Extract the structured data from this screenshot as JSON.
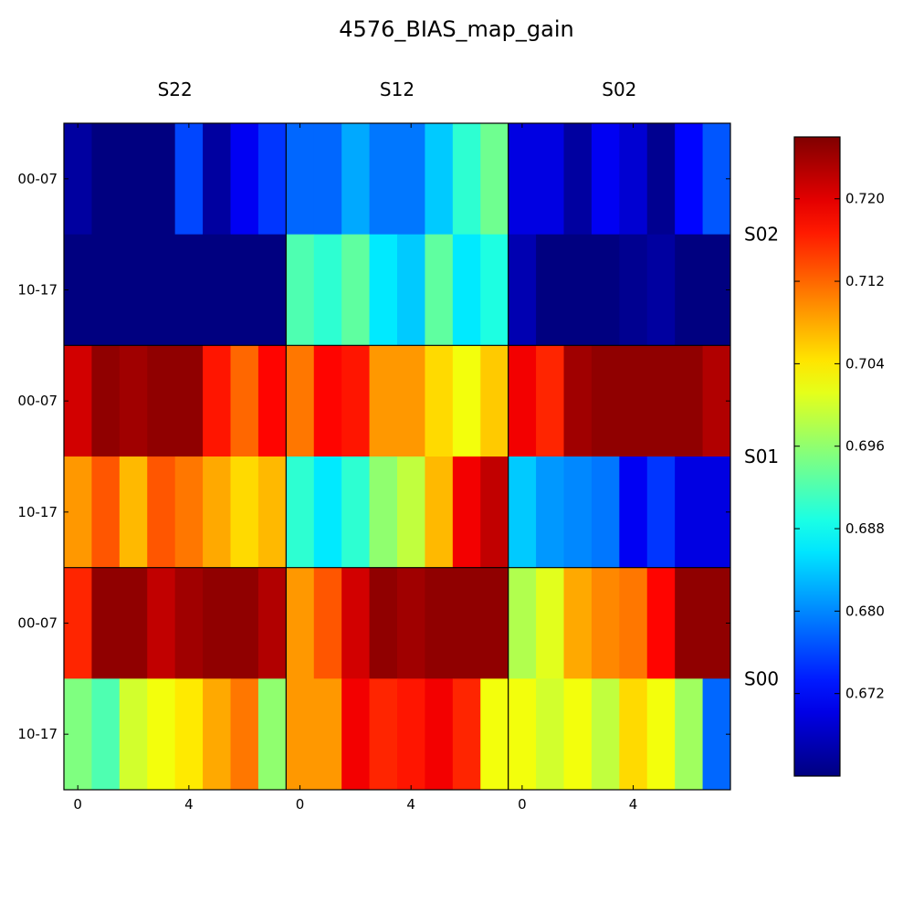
{
  "chart_data": {
    "type": "heatmap",
    "title": "4576_BIAS_map_gain",
    "column_groups": [
      "S22",
      "S12",
      "S02"
    ],
    "row_groups": [
      "S02",
      "S01",
      "S00"
    ],
    "row_tick_labels": [
      "00-07",
      "10-17"
    ],
    "x_tick_labels": [
      "0",
      "4"
    ],
    "x_tick_positions": [
      0,
      4
    ],
    "columns_per_group": 8,
    "rows_per_group": 2,
    "colormap": "jet",
    "color_range": [
      0.664,
      0.726
    ],
    "colorbar_ticks": [
      {
        "value": 0.672,
        "label": "0.672"
      },
      {
        "value": 0.68,
        "label": "0.680"
      },
      {
        "value": 0.688,
        "label": "0.688"
      },
      {
        "value": 0.696,
        "label": "0.696"
      },
      {
        "value": 0.704,
        "label": "0.704"
      },
      {
        "value": 0.712,
        "label": "0.712"
      },
      {
        "value": 0.72,
        "label": "0.720"
      }
    ],
    "values": [
      [
        0.666,
        0.664,
        0.664,
        0.664,
        0.676,
        0.666,
        0.671,
        0.675,
        0.678,
        0.678,
        0.682,
        0.679,
        0.679,
        0.684,
        0.69,
        0.694,
        0.67,
        0.67,
        0.666,
        0.671,
        0.669,
        0.665,
        0.672,
        0.677
      ],
      [
        0.664,
        0.664,
        0.664,
        0.664,
        0.664,
        0.664,
        0.664,
        0.664,
        0.692,
        0.69,
        0.693,
        0.686,
        0.684,
        0.693,
        0.686,
        0.689,
        0.667,
        0.664,
        0.664,
        0.664,
        0.665,
        0.666,
        0.664,
        0.664
      ],
      [
        0.721,
        0.725,
        0.724,
        0.725,
        0.725,
        0.717,
        0.712,
        0.718,
        0.711,
        0.718,
        0.717,
        0.709,
        0.709,
        0.705,
        0.702,
        0.706,
        0.719,
        0.716,
        0.724,
        0.725,
        0.725,
        0.725,
        0.725,
        0.723
      ],
      [
        0.709,
        0.713,
        0.707,
        0.713,
        0.711,
        0.708,
        0.705,
        0.707,
        0.69,
        0.686,
        0.69,
        0.696,
        0.699,
        0.707,
        0.719,
        0.722,
        0.684,
        0.681,
        0.68,
        0.679,
        0.671,
        0.675,
        0.67,
        0.67
      ],
      [
        0.716,
        0.725,
        0.725,
        0.722,
        0.724,
        0.725,
        0.725,
        0.723,
        0.709,
        0.713,
        0.721,
        0.725,
        0.724,
        0.725,
        0.725,
        0.725,
        0.698,
        0.701,
        0.708,
        0.71,
        0.711,
        0.718,
        0.725,
        0.725
      ],
      [
        0.695,
        0.692,
        0.7,
        0.702,
        0.704,
        0.708,
        0.711,
        0.696,
        0.709,
        0.709,
        0.719,
        0.716,
        0.717,
        0.719,
        0.716,
        0.702,
        0.702,
        0.7,
        0.702,
        0.699,
        0.705,
        0.702,
        0.697,
        0.678
      ]
    ]
  }
}
